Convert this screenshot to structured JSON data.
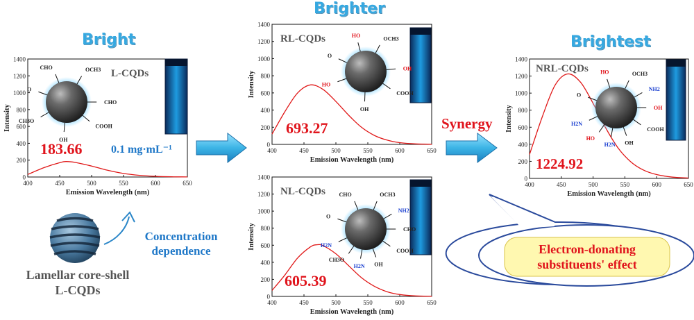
{
  "headings": {
    "bright": "Bright",
    "brighter": "Brighter",
    "brightest": "Brightest"
  },
  "synergy": "Synergy",
  "concentration": {
    "line1": "Concentration",
    "line2": "dependence"
  },
  "lamellar": {
    "line1": "Lamellar core-shell",
    "line2": "L-CQDs"
  },
  "bubble": {
    "line1": "Electron-donating",
    "line2": "substituents' effect"
  },
  "colors": {
    "heading": "#36a8e0",
    "accent_red": "#e0141c",
    "label_blue": "#1f78c8",
    "curve": "#e01818",
    "vial": "#1a8fd8",
    "arrow": "#3cb4e6"
  },
  "chart_data": [
    {
      "type": "line",
      "name": "L-CQDs",
      "title": "",
      "ylabel": "Intensity",
      "xlabel": "Emission Wavelength (nm)",
      "xlim": [
        400,
        650
      ],
      "ylim": [
        0,
        1400
      ],
      "xticks": [
        "400",
        "450",
        "500",
        "550",
        "600",
        "650"
      ],
      "yticks": [
        "0",
        "200",
        "400",
        "600",
        "800",
        "1000",
        "1200",
        "1400"
      ],
      "peak_label": "183.66",
      "extra_label": "0.1 mg·mL⁻¹",
      "x": [
        400,
        425,
        450,
        460,
        475,
        500,
        525,
        550,
        575,
        600,
        625,
        650
      ],
      "y": [
        30,
        110,
        170,
        183.66,
        172,
        130,
        80,
        42,
        20,
        8,
        3,
        1
      ]
    },
    {
      "type": "line",
      "name": "RL-CQDs",
      "title": "",
      "ylabel": "Intensity",
      "xlabel": "Emission Wavelength (nm)",
      "xlim": [
        400,
        650
      ],
      "ylim": [
        0,
        1400
      ],
      "xticks": [
        "400",
        "450",
        "500",
        "550",
        "600",
        "650"
      ],
      "yticks": [
        "0",
        "200",
        "400",
        "600",
        "800",
        "1000",
        "1200",
        "1400"
      ],
      "peak_label": "693.27",
      "x": [
        400,
        420,
        440,
        460,
        480,
        500,
        520,
        540,
        560,
        580,
        600,
        625,
        650
      ],
      "y": [
        120,
        380,
        600,
        693.27,
        640,
        500,
        340,
        200,
        105,
        50,
        20,
        6,
        2
      ]
    },
    {
      "type": "line",
      "name": "NL-CQDs",
      "title": "",
      "ylabel": "Intensity",
      "xlabel": "Emission Wavelength (nm)",
      "xlim": [
        400,
        650
      ],
      "ylim": [
        0,
        1400
      ],
      "xticks": [
        "400",
        "450",
        "500",
        "550",
        "600",
        "650"
      ],
      "yticks": [
        "0",
        "200",
        "400",
        "600",
        "800",
        "1000",
        "1200",
        "1400"
      ],
      "peak_label": "605.39",
      "x": [
        400,
        420,
        440,
        460,
        470,
        480,
        500,
        520,
        540,
        560,
        580,
        600,
        625,
        650
      ],
      "y": [
        70,
        250,
        450,
        580,
        605.39,
        595,
        500,
        360,
        220,
        120,
        55,
        22,
        6,
        2
      ]
    },
    {
      "type": "line",
      "name": "NRL-CQDs",
      "title": "",
      "ylabel": "Intensity",
      "xlabel": "Emission Wavelength (nm)",
      "xlim": [
        400,
        650
      ],
      "ylim": [
        0,
        1400
      ],
      "xticks": [
        "400",
        "450",
        "500",
        "550",
        "600",
        "650"
      ],
      "yticks": [
        "0",
        "200",
        "400",
        "600",
        "800",
        "1000",
        "1200",
        "1400"
      ],
      "peak_label": "1224.92",
      "x": [
        400,
        420,
        440,
        460,
        480,
        500,
        520,
        540,
        560,
        580,
        600,
        625,
        650
      ],
      "y": [
        280,
        720,
        1090,
        1224.92,
        1130,
        880,
        590,
        350,
        190,
        95,
        45,
        15,
        4
      ]
    }
  ],
  "molecules": {
    "L": [
      {
        "text": "CHO",
        "color": "#222"
      },
      {
        "text": "OCH3",
        "color": "#222"
      },
      {
        "text": "O",
        "color": "#222"
      },
      {
        "text": "CHO",
        "color": "#222"
      },
      {
        "text": "OH",
        "color": "#222"
      },
      {
        "text": "COOH",
        "color": "#222"
      },
      {
        "text": "CH3O",
        "color": "#222"
      }
    ],
    "RL": [
      {
        "text": "HO",
        "color": "#e0141c"
      },
      {
        "text": "OCH3",
        "color": "#222"
      },
      {
        "text": "O",
        "color": "#222"
      },
      {
        "text": "OH",
        "color": "#e0141c"
      },
      {
        "text": "HO",
        "color": "#e0141c"
      },
      {
        "text": "OH",
        "color": "#222"
      },
      {
        "text": "COOH",
        "color": "#222"
      }
    ],
    "NL": [
      {
        "text": "CHO",
        "color": "#222"
      },
      {
        "text": "OCH3",
        "color": "#222"
      },
      {
        "text": "NH2",
        "color": "#1a3fd0"
      },
      {
        "text": "O",
        "color": "#222"
      },
      {
        "text": "CHO",
        "color": "#222"
      },
      {
        "text": "H2N",
        "color": "#1a3fd0"
      },
      {
        "text": "CH3O",
        "color": "#222"
      },
      {
        "text": "H2N",
        "color": "#1a3fd0"
      },
      {
        "text": "OH",
        "color": "#222"
      },
      {
        "text": "COOH",
        "color": "#222"
      }
    ],
    "NRL": [
      {
        "text": "HO",
        "color": "#e0141c"
      },
      {
        "text": "OCH3",
        "color": "#222"
      },
      {
        "text": "NH2",
        "color": "#1a3fd0"
      },
      {
        "text": "O",
        "color": "#222"
      },
      {
        "text": "OH",
        "color": "#e0141c"
      },
      {
        "text": "H2N",
        "color": "#1a3fd0"
      },
      {
        "text": "HO",
        "color": "#e0141c"
      },
      {
        "text": "H2N",
        "color": "#1a3fd0"
      },
      {
        "text": "OH",
        "color": "#222"
      },
      {
        "text": "COOH",
        "color": "#222"
      }
    ]
  }
}
